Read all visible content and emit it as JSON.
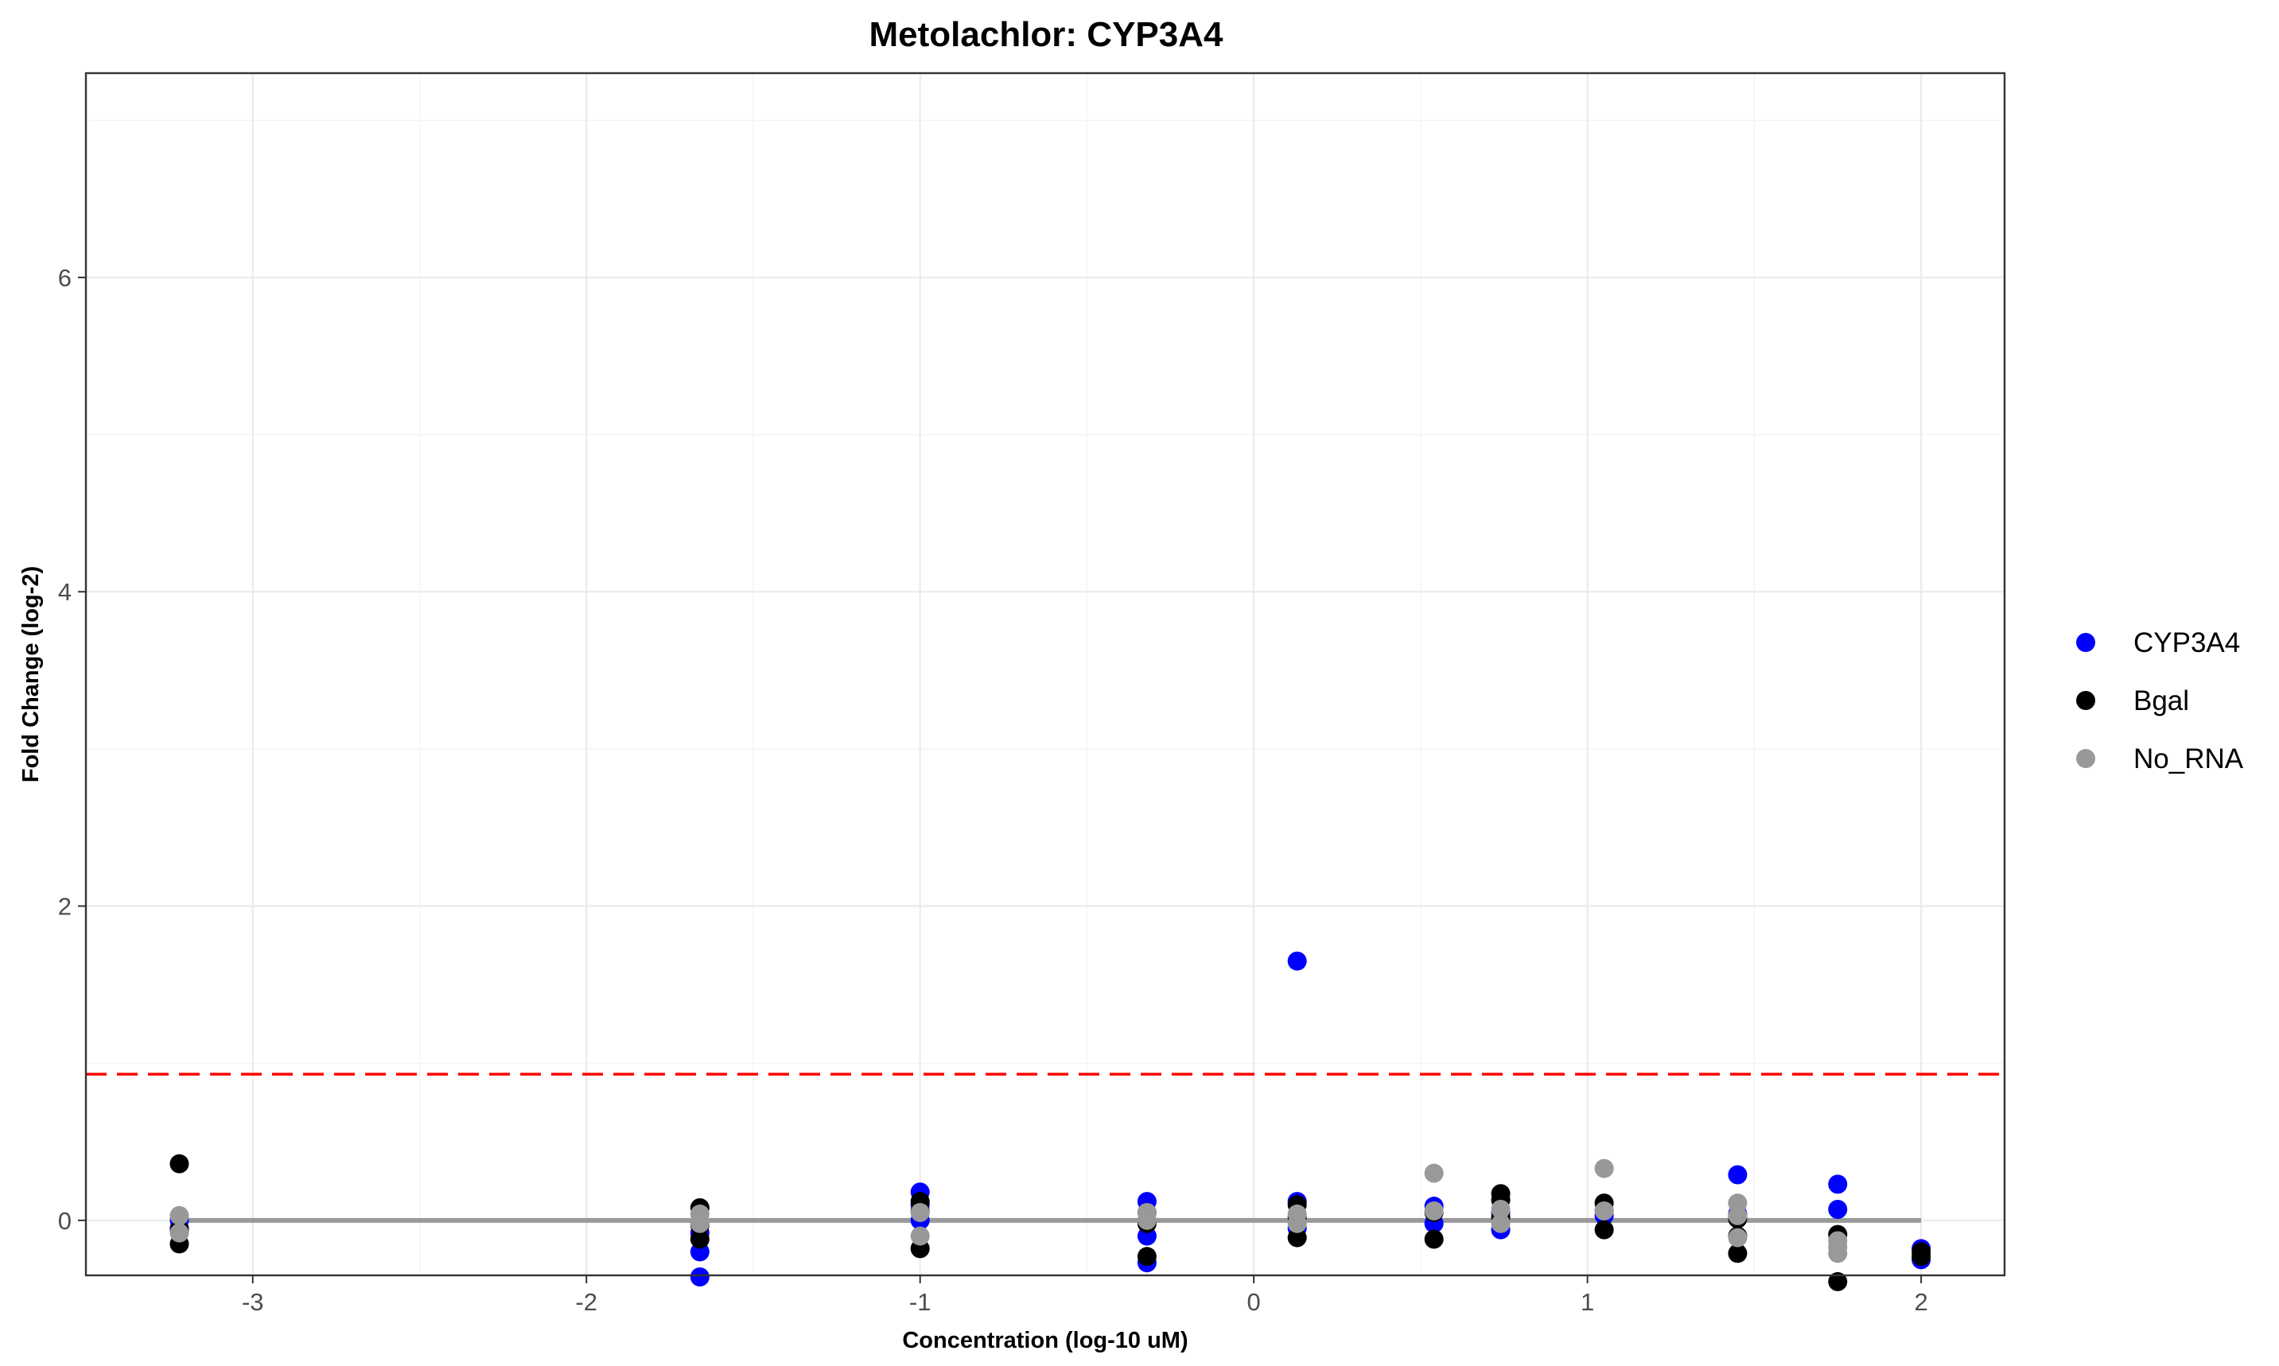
{
  "chart_data": {
    "type": "scatter",
    "title": "Metolachlor: CYP3A4",
    "xlabel": "Concentration (log-10 uM)",
    "ylabel": "Fold Change (log-2)",
    "xlim": [
      -3.5,
      2.25
    ],
    "ylim": [
      -0.35,
      7.3
    ],
    "x_ticks": [
      -3,
      -2,
      -1,
      0,
      1,
      2
    ],
    "x_tick_labels": [
      "-3",
      "-2",
      "-1",
      "0",
      "1",
      "2"
    ],
    "y_ticks": [
      0,
      2,
      4,
      6
    ],
    "y_tick_labels": [
      "0",
      "2",
      "4",
      "6"
    ],
    "grid": true,
    "legend_position": "right",
    "threshold": {
      "y": 0.93,
      "color": "#ff0000",
      "style": "dashed"
    },
    "baseline": {
      "x_start": -3.22,
      "x_end": 2.0,
      "y": 0,
      "color": "#999999"
    },
    "series": [
      {
        "name": "CYP3A4",
        "color": "#0000ff",
        "points": [
          [
            -3.22,
            -0.05
          ],
          [
            -3.22,
            0.0
          ],
          [
            -1.66,
            -0.2
          ],
          [
            -1.66,
            -0.36
          ],
          [
            -1.66,
            -0.08
          ],
          [
            -1.0,
            0.18
          ],
          [
            -1.0,
            0.0
          ],
          [
            -1.0,
            0.1
          ],
          [
            -0.32,
            0.12
          ],
          [
            -0.32,
            -0.1
          ],
          [
            -0.32,
            -0.27
          ],
          [
            0.13,
            1.65
          ],
          [
            0.13,
            0.12
          ],
          [
            0.13,
            -0.05
          ],
          [
            0.54,
            0.09
          ],
          [
            0.54,
            -0.02
          ],
          [
            0.74,
            -0.06
          ],
          [
            0.74,
            0.05
          ],
          [
            1.05,
            0.03
          ],
          [
            1.05,
            0.06
          ],
          [
            1.45,
            0.29
          ],
          [
            1.45,
            0.04
          ],
          [
            1.75,
            0.23
          ],
          [
            1.75,
            0.07
          ],
          [
            2.0,
            -0.18
          ],
          [
            2.0,
            -0.25
          ]
        ]
      },
      {
        "name": "Bgal",
        "color": "#000000",
        "points": [
          [
            -3.22,
            0.36
          ],
          [
            -3.22,
            -0.15
          ],
          [
            -3.22,
            -0.06
          ],
          [
            -1.66,
            0.08
          ],
          [
            -1.66,
            -0.12
          ],
          [
            -1.66,
            -0.03
          ],
          [
            -1.0,
            -0.18
          ],
          [
            -1.0,
            0.12
          ],
          [
            -1.0,
            0.06
          ],
          [
            -0.32,
            -0.23
          ],
          [
            -0.32,
            0.05
          ],
          [
            -0.32,
            -0.02
          ],
          [
            0.13,
            0.1
          ],
          [
            0.13,
            -0.11
          ],
          [
            0.13,
            0.02
          ],
          [
            0.54,
            -0.12
          ],
          [
            0.54,
            0.05
          ],
          [
            0.74,
            0.17
          ],
          [
            0.74,
            0.13
          ],
          [
            0.74,
            0.02
          ],
          [
            1.05,
            0.11
          ],
          [
            1.05,
            -0.06
          ],
          [
            1.45,
            -0.21
          ],
          [
            1.45,
            -0.1
          ],
          [
            1.45,
            0.01
          ],
          [
            1.75,
            -0.09
          ],
          [
            1.75,
            -0.39
          ],
          [
            2.0,
            -0.2
          ],
          [
            2.0,
            -0.23
          ]
        ]
      },
      {
        "name": "No_RNA",
        "color": "#999999",
        "points": [
          [
            -3.22,
            0.03
          ],
          [
            -3.22,
            -0.08
          ],
          [
            -1.66,
            0.04
          ],
          [
            -1.66,
            -0.02
          ],
          [
            -1.0,
            0.05
          ],
          [
            -1.0,
            -0.1
          ],
          [
            -0.32,
            0.05
          ],
          [
            -0.32,
            0.0
          ],
          [
            0.13,
            0.04
          ],
          [
            0.13,
            -0.02
          ],
          [
            0.54,
            0.3
          ],
          [
            0.54,
            0.06
          ],
          [
            0.74,
            0.07
          ],
          [
            0.74,
            -0.02
          ],
          [
            1.05,
            0.33
          ],
          [
            1.05,
            0.06
          ],
          [
            1.45,
            0.11
          ],
          [
            1.45,
            0.03
          ],
          [
            1.45,
            -0.11
          ],
          [
            1.75,
            -0.17
          ],
          [
            1.75,
            -0.21
          ],
          [
            1.75,
            -0.13
          ]
        ]
      }
    ]
  }
}
